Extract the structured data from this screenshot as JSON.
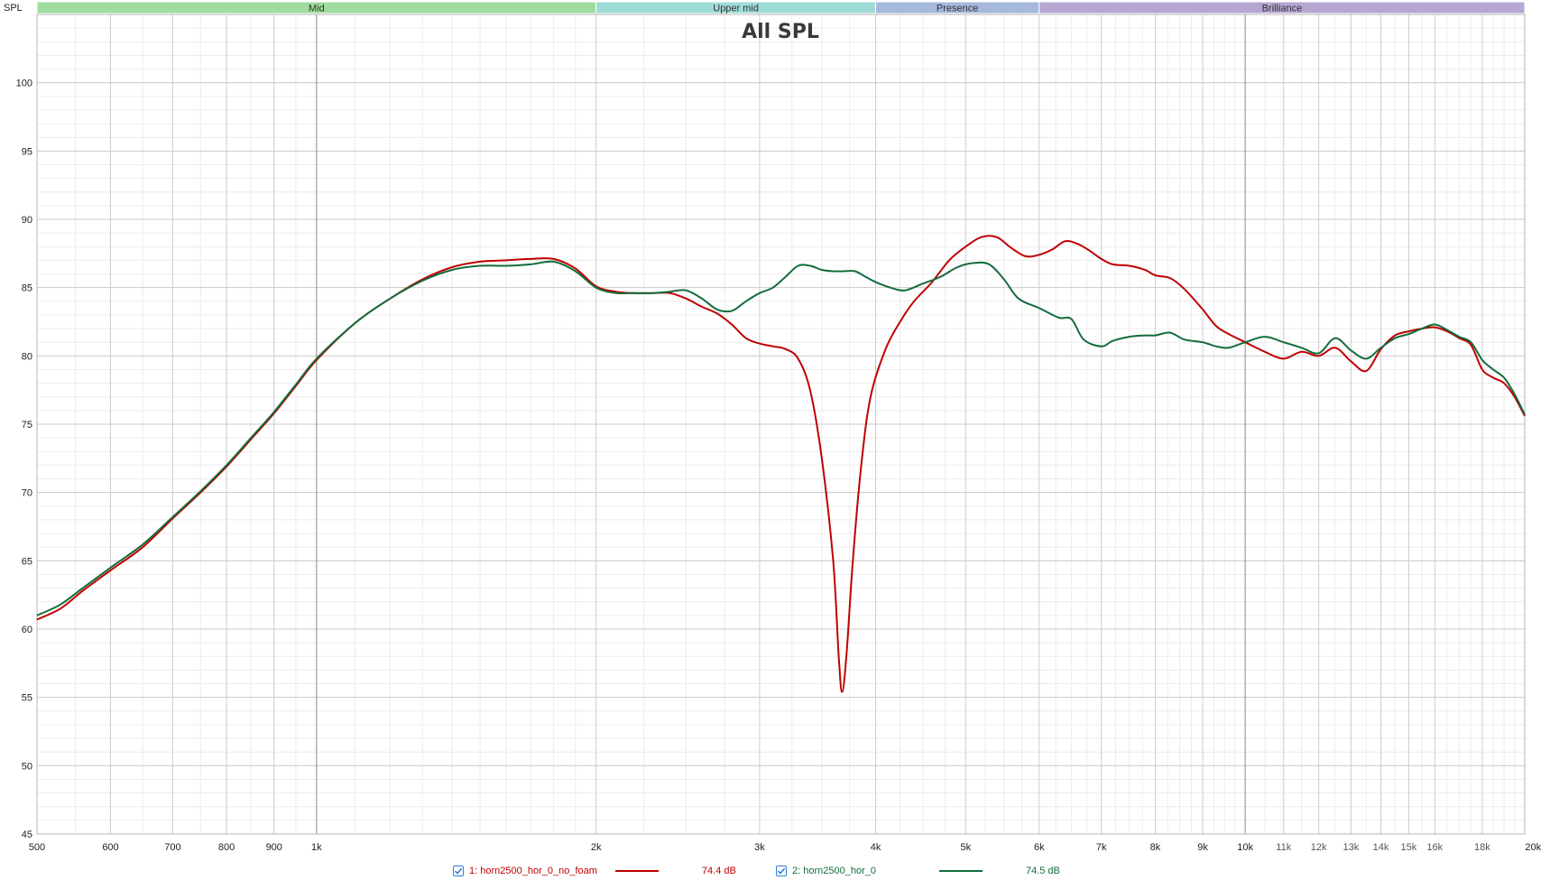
{
  "chart_data": {
    "type": "line",
    "title": "All SPL",
    "ylabel": "SPL",
    "x_scale": "log",
    "xlim": [
      500,
      20000
    ],
    "ylim": [
      45,
      105
    ],
    "y_ticks": [
      45,
      50,
      55,
      60,
      65,
      70,
      75,
      80,
      85,
      90,
      95,
      100
    ],
    "x_ticks": [
      {
        "v": 500,
        "label": "500"
      },
      {
        "v": 600,
        "label": "600"
      },
      {
        "v": 700,
        "label": "700"
      },
      {
        "v": 800,
        "label": "800"
      },
      {
        "v": 900,
        "label": "900"
      },
      {
        "v": 1000,
        "label": "1k"
      },
      {
        "v": 2000,
        "label": "2k"
      },
      {
        "v": 3000,
        "label": "3k"
      },
      {
        "v": 4000,
        "label": "4k"
      },
      {
        "v": 5000,
        "label": "5k"
      },
      {
        "v": 6000,
        "label": "6k"
      },
      {
        "v": 7000,
        "label": "7k"
      },
      {
        "v": 8000,
        "label": "8k"
      },
      {
        "v": 9000,
        "label": "9k"
      },
      {
        "v": 10000,
        "label": "10k"
      },
      {
        "v": 11000,
        "label": "11k"
      },
      {
        "v": 12000,
        "label": "12k"
      },
      {
        "v": 13000,
        "label": "13k"
      },
      {
        "v": 14000,
        "label": "14k"
      },
      {
        "v": 15000,
        "label": "15k"
      },
      {
        "v": 16000,
        "label": "16k"
      },
      {
        "v": 18000,
        "label": "18k"
      },
      {
        "v": 20000,
        "label": "20kHz"
      }
    ],
    "bands": [
      {
        "label": "Mid",
        "from": 500,
        "to": 2000,
        "color": "#9fdc9f"
      },
      {
        "label": "Upper mid",
        "from": 2000,
        "to": 4000,
        "color": "#9fdcd6"
      },
      {
        "label": "Presence",
        "from": 4000,
        "to": 6000,
        "color": "#a6b8dc"
      },
      {
        "label": "Brilliance",
        "from": 6000,
        "to": 20000,
        "color": "#b6a6d2"
      }
    ],
    "grid": true,
    "legend_position": "bottom",
    "series": [
      {
        "name": "1: horn2500_hor_0_no_foam",
        "level": "74.4 dB",
        "color": "#c00000",
        "points": [
          [
            500,
            60.7
          ],
          [
            530,
            61.5
          ],
          [
            560,
            62.8
          ],
          [
            600,
            64.3
          ],
          [
            650,
            66.0
          ],
          [
            700,
            68.1
          ],
          [
            750,
            70.0
          ],
          [
            800,
            71.9
          ],
          [
            850,
            73.9
          ],
          [
            900,
            75.8
          ],
          [
            950,
            77.8
          ],
          [
            1000,
            79.7
          ],
          [
            1100,
            82.4
          ],
          [
            1200,
            84.2
          ],
          [
            1300,
            85.6
          ],
          [
            1400,
            86.5
          ],
          [
            1500,
            86.9
          ],
          [
            1600,
            87.0
          ],
          [
            1700,
            87.1
          ],
          [
            1800,
            87.1
          ],
          [
            1900,
            86.4
          ],
          [
            2000,
            85.1
          ],
          [
            2100,
            84.7
          ],
          [
            2200,
            84.6
          ],
          [
            2300,
            84.6
          ],
          [
            2400,
            84.6
          ],
          [
            2500,
            84.2
          ],
          [
            2600,
            83.6
          ],
          [
            2700,
            83.1
          ],
          [
            2800,
            82.3
          ],
          [
            2900,
            81.3
          ],
          [
            3000,
            80.9
          ],
          [
            3100,
            80.7
          ],
          [
            3200,
            80.5
          ],
          [
            3300,
            79.8
          ],
          [
            3400,
            77.5
          ],
          [
            3500,
            72.5
          ],
          [
            3600,
            65.0
          ],
          [
            3650,
            58.0
          ],
          [
            3680,
            55.4
          ],
          [
            3720,
            58.0
          ],
          [
            3780,
            65.0
          ],
          [
            3860,
            72.0
          ],
          [
            3950,
            77.0
          ],
          [
            4100,
            80.5
          ],
          [
            4250,
            82.5
          ],
          [
            4400,
            84.0
          ],
          [
            4600,
            85.4
          ],
          [
            4800,
            87.0
          ],
          [
            5000,
            88.0
          ],
          [
            5200,
            88.7
          ],
          [
            5400,
            88.7
          ],
          [
            5600,
            87.9
          ],
          [
            5800,
            87.3
          ],
          [
            6000,
            87.4
          ],
          [
            6200,
            87.8
          ],
          [
            6400,
            88.4
          ],
          [
            6600,
            88.2
          ],
          [
            6800,
            87.7
          ],
          [
            7000,
            87.1
          ],
          [
            7200,
            86.7
          ],
          [
            7500,
            86.6
          ],
          [
            7800,
            86.3
          ],
          [
            8000,
            85.9
          ],
          [
            8300,
            85.7
          ],
          [
            8600,
            84.9
          ],
          [
            9000,
            83.4
          ],
          [
            9300,
            82.2
          ],
          [
            9600,
            81.6
          ],
          [
            10000,
            81.0
          ],
          [
            10500,
            80.3
          ],
          [
            11000,
            79.8
          ],
          [
            11500,
            80.3
          ],
          [
            12000,
            80.0
          ],
          [
            12500,
            80.6
          ],
          [
            13000,
            79.6
          ],
          [
            13500,
            78.9
          ],
          [
            14000,
            80.5
          ],
          [
            14500,
            81.5
          ],
          [
            15000,
            81.8
          ],
          [
            15500,
            82.0
          ],
          [
            16000,
            82.1
          ],
          [
            16500,
            81.8
          ],
          [
            17000,
            81.3
          ],
          [
            17500,
            80.8
          ],
          [
            18000,
            79.0
          ],
          [
            18500,
            78.4
          ],
          [
            19000,
            78.0
          ],
          [
            19500,
            77.0
          ],
          [
            20000,
            75.6
          ]
        ]
      },
      {
        "name": "2: horn2500_hor_0",
        "level": "74.5 dB",
        "color": "#146c3c",
        "points": [
          [
            500,
            61.0
          ],
          [
            530,
            61.8
          ],
          [
            560,
            63.0
          ],
          [
            600,
            64.5
          ],
          [
            650,
            66.2
          ],
          [
            700,
            68.2
          ],
          [
            750,
            70.1
          ],
          [
            800,
            72.0
          ],
          [
            850,
            74.0
          ],
          [
            900,
            75.9
          ],
          [
            950,
            77.9
          ],
          [
            1000,
            79.8
          ],
          [
            1100,
            82.4
          ],
          [
            1200,
            84.2
          ],
          [
            1300,
            85.5
          ],
          [
            1400,
            86.3
          ],
          [
            1500,
            86.6
          ],
          [
            1600,
            86.6
          ],
          [
            1700,
            86.7
          ],
          [
            1800,
            86.9
          ],
          [
            1900,
            86.2
          ],
          [
            2000,
            85.0
          ],
          [
            2100,
            84.6
          ],
          [
            2200,
            84.6
          ],
          [
            2300,
            84.6
          ],
          [
            2400,
            84.7
          ],
          [
            2500,
            84.8
          ],
          [
            2600,
            84.2
          ],
          [
            2700,
            83.4
          ],
          [
            2800,
            83.3
          ],
          [
            2900,
            84.0
          ],
          [
            3000,
            84.6
          ],
          [
            3100,
            85.0
          ],
          [
            3200,
            85.8
          ],
          [
            3300,
            86.6
          ],
          [
            3400,
            86.6
          ],
          [
            3500,
            86.3
          ],
          [
            3600,
            86.2
          ],
          [
            3700,
            86.2
          ],
          [
            3800,
            86.2
          ],
          [
            3900,
            85.8
          ],
          [
            4000,
            85.4
          ],
          [
            4150,
            85.0
          ],
          [
            4300,
            84.8
          ],
          [
            4500,
            85.3
          ],
          [
            4700,
            85.8
          ],
          [
            4900,
            86.5
          ],
          [
            5100,
            86.8
          ],
          [
            5300,
            86.7
          ],
          [
            5500,
            85.6
          ],
          [
            5700,
            84.2
          ],
          [
            6000,
            83.5
          ],
          [
            6300,
            82.8
          ],
          [
            6500,
            82.7
          ],
          [
            6700,
            81.2
          ],
          [
            7000,
            80.7
          ],
          [
            7200,
            81.1
          ],
          [
            7500,
            81.4
          ],
          [
            7800,
            81.5
          ],
          [
            8000,
            81.5
          ],
          [
            8300,
            81.7
          ],
          [
            8600,
            81.2
          ],
          [
            9000,
            81.0
          ],
          [
            9300,
            80.7
          ],
          [
            9600,
            80.6
          ],
          [
            10000,
            81.0
          ],
          [
            10500,
            81.4
          ],
          [
            11000,
            81.0
          ],
          [
            11500,
            80.6
          ],
          [
            12000,
            80.2
          ],
          [
            12500,
            81.3
          ],
          [
            13000,
            80.4
          ],
          [
            13500,
            79.8
          ],
          [
            14000,
            80.6
          ],
          [
            14500,
            81.3
          ],
          [
            15000,
            81.6
          ],
          [
            15500,
            82.0
          ],
          [
            16000,
            82.3
          ],
          [
            16500,
            81.9
          ],
          [
            17000,
            81.4
          ],
          [
            17500,
            81.0
          ],
          [
            18000,
            79.7
          ],
          [
            18500,
            79.0
          ],
          [
            19000,
            78.4
          ],
          [
            19500,
            77.2
          ],
          [
            20000,
            75.7
          ]
        ]
      }
    ]
  }
}
